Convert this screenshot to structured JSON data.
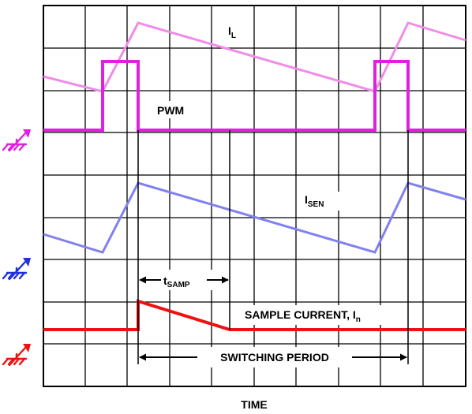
{
  "labels": {
    "il_main": "I",
    "il_sub": "L",
    "pwm": "PWM",
    "isen_main": "I",
    "isen_sub": "SEN",
    "tsamp_main": "t",
    "tsamp_sub": "SAMP",
    "sample_current": "SAMPLE CURRENT, I",
    "sample_current_sub": "n",
    "switching_period": "SWITCHING PERIOD",
    "time_axis": "TIME"
  },
  "colors": {
    "il_trace": "#f08ce8",
    "pwm_trace": "#e020e0",
    "isen_trace": "#8080f0",
    "sample_trace": "#ee1111",
    "ground_pwm": "#e020e0",
    "ground_isen": "#2030e0",
    "ground_sample": "#ee1111"
  },
  "icons": {
    "ground_markers": [
      "ground-arrow-icon",
      "ground-arrow-icon",
      "ground-arrow-icon"
    ]
  }
}
